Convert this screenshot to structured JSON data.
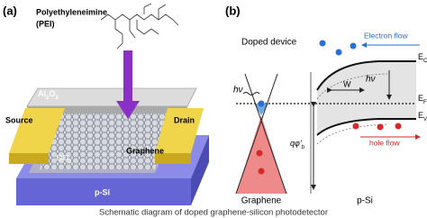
{
  "panel_a": {
    "label": "(a)",
    "molecule_name": "Polyethyleneimine",
    "molecule_abbr": "(PEI)",
    "al2o3": [
      "Al",
      "2",
      "O",
      "3"
    ],
    "source": "Source",
    "drain": "Drain",
    "graphene": "Graphene",
    "sio2": [
      "SiO",
      "2"
    ],
    "substrate": "p-Si"
  },
  "panel_b": {
    "label": "(b)",
    "title": "Doped device",
    "electron_flow": "Electron flow",
    "hole_flow": "hole flow",
    "ec": [
      "E",
      "C"
    ],
    "ef": [
      "E",
      "F"
    ],
    "ev": [
      "E",
      "V"
    ],
    "photon_left": "hν",
    "photon_right": "hν",
    "width": "W",
    "barrier": [
      "qφ'",
      "b"
    ],
    "left_label": "Graphene",
    "right_label": "p-Si"
  },
  "caption": "Schematic diagram of doped graphene-silicon photodetector"
}
